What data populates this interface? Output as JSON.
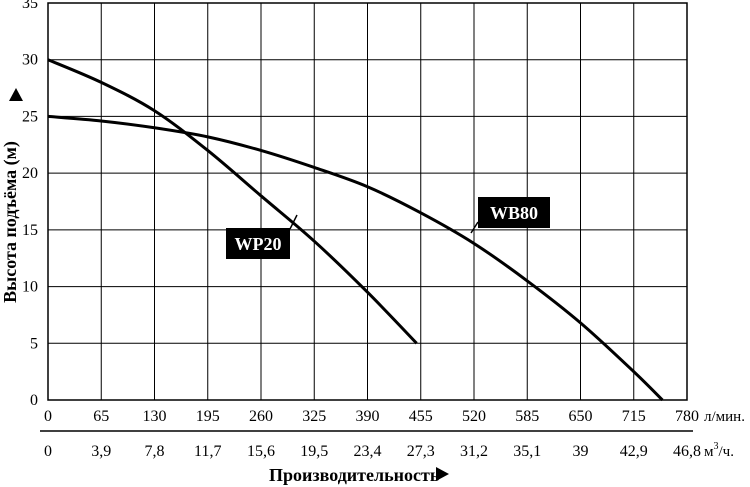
{
  "chart_data": {
    "type": "line",
    "xlabel": "Производительность",
    "ylabel": "Высота подъёма (м)",
    "x_unit_primary": "л/мин.",
    "x_unit_secondary_base": "м",
    "x_unit_secondary_sup": "3",
    "x_unit_secondary_tail": "/ч.",
    "xlim": [
      0,
      780
    ],
    "ylim": [
      0,
      35
    ],
    "x_ticks_primary": [
      "0",
      "65",
      "130",
      "195",
      "260",
      "325",
      "390",
      "455",
      "520",
      "585",
      "650",
      "715",
      "780"
    ],
    "x_ticks_secondary": [
      "0",
      "3,9",
      "7,8",
      "11,7",
      "15,6",
      "19,5",
      "23,4",
      "27,3",
      "31,2",
      "35,1",
      "39",
      "42,9",
      "46,8"
    ],
    "y_ticks": [
      "0",
      "5",
      "10",
      "15",
      "20",
      "25",
      "30",
      "35"
    ],
    "grid": true,
    "series": [
      {
        "name": "WP20",
        "x": [
          0,
          65,
          130,
          195,
          260,
          325,
          390,
          450
        ],
        "y": [
          30,
          28,
          25.5,
          22,
          18,
          14,
          9.5,
          5
        ]
      },
      {
        "name": "WB80",
        "x": [
          0,
          65,
          130,
          195,
          260,
          325,
          390,
          455,
          520,
          585,
          650,
          715,
          750
        ],
        "y": [
          25,
          24.6,
          24,
          23.2,
          22,
          20.5,
          18.8,
          16.5,
          13.8,
          10.5,
          6.8,
          2.5,
          0
        ]
      }
    ]
  }
}
